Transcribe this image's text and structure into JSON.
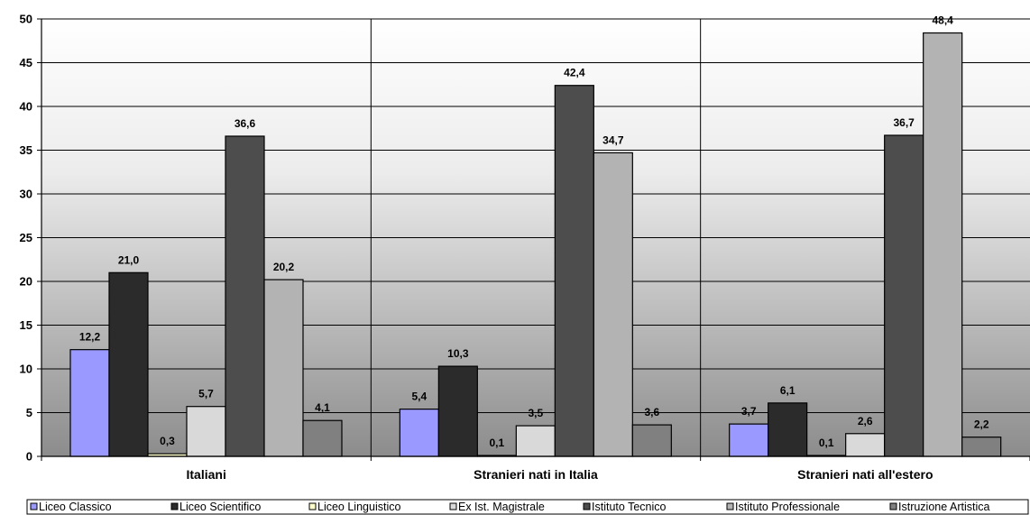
{
  "chart_data": {
    "type": "bar",
    "title": "",
    "xlabel": "",
    "ylabel": "",
    "ylim": [
      0,
      50
    ],
    "yticks": [
      0,
      5,
      10,
      15,
      20,
      25,
      30,
      35,
      40,
      45,
      50
    ],
    "categories": [
      "Italiani",
      "Stranieri nati in Italia",
      "Stranieri nati all'estero"
    ],
    "series": [
      {
        "name": "Liceo Classico",
        "color": "#9999ff",
        "values": [
          12.2,
          5.4,
          3.7
        ],
        "labels": [
          "12,2",
          "5,4",
          "3,7"
        ]
      },
      {
        "name": "Liceo Scientifico",
        "color": "#2b2b2b",
        "values": [
          21.0,
          10.3,
          6.1
        ],
        "labels": [
          "21,0",
          "10,3",
          "6,1"
        ]
      },
      {
        "name": "Liceo Linguistico",
        "color": "#ffffcc",
        "values": [
          0.3,
          0.1,
          0.1
        ],
        "labels": [
          "0,3",
          "0,1",
          "0,1"
        ]
      },
      {
        "name": "Ex Ist. Magistrale",
        "color": "#d9d9d9",
        "values": [
          5.7,
          3.5,
          2.6
        ],
        "labels": [
          "5,7",
          "3,5",
          "2,6"
        ]
      },
      {
        "name": "Istituto  Tecnico",
        "color": "#4d4d4d",
        "values": [
          36.6,
          42.4,
          36.7
        ],
        "labels": [
          "36,6",
          "42,4",
          "36,7"
        ]
      },
      {
        "name": "Istituto Professionale",
        "color": "#b3b3b3",
        "values": [
          20.2,
          34.7,
          48.4
        ],
        "labels": [
          "20,2",
          "34,7",
          "48,4"
        ]
      },
      {
        "name": "Istruzione Artistica",
        "color": "#808080",
        "values": [
          4.1,
          3.6,
          2.2
        ],
        "labels": [
          "4,1",
          "3,6",
          "2,2"
        ]
      }
    ],
    "grid": true,
    "legend": "bottom"
  }
}
